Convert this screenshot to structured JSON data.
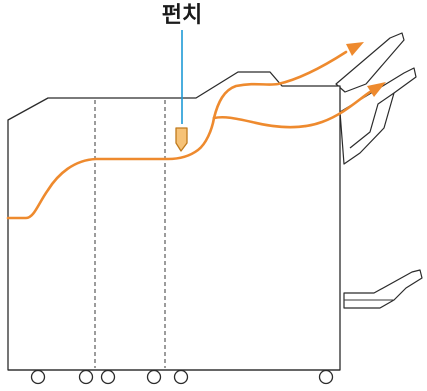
{
  "callout": {
    "label": "펀치",
    "leader_color": "#1e9ad6"
  },
  "paper_path_color": "#ee8a2e",
  "punch_unit_color": "#f6c277",
  "icons": {
    "punch_unit": "punch-unit-icon",
    "arrow": "arrow-icon",
    "wheel": "caster-wheel-icon"
  }
}
